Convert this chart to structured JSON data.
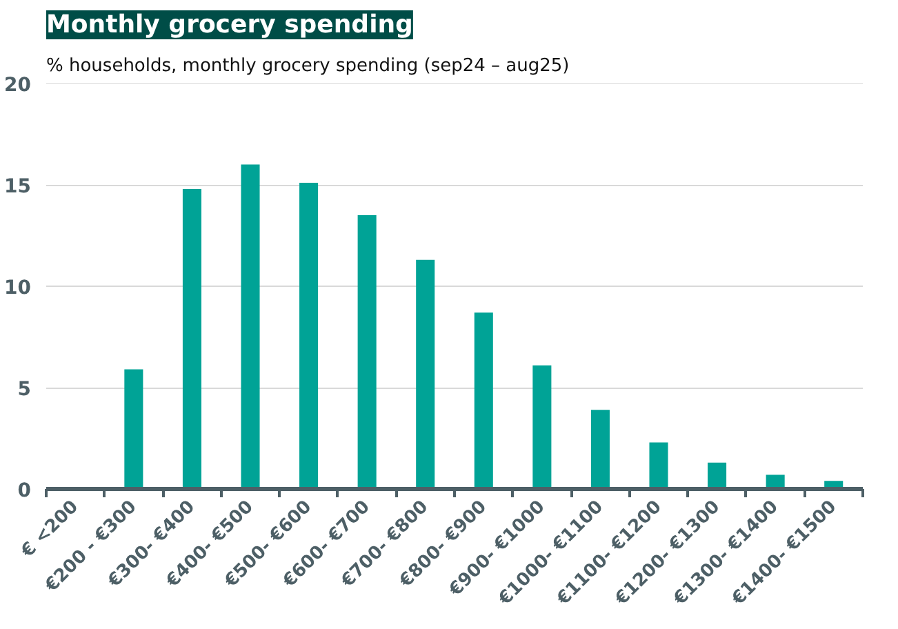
{
  "chart_data": {
    "type": "bar",
    "title": "Monthly grocery spending",
    "subtitle": "% households, monthly grocery spending (sep24 – aug25)",
    "categories": [
      "€ <200",
      "€200 - €300",
      "€300- €400",
      "€400- €500",
      "€500- €600",
      "€600- €700",
      "€700- €800",
      "€800- €900",
      "€900- €1000",
      "€1000- €1100",
      "€1100- €1200",
      "€1200- €1300",
      "€1300- €1400",
      "€1400- €1500"
    ],
    "values": [
      0,
      5.9,
      14.8,
      16.0,
      15.1,
      13.5,
      11.3,
      8.7,
      6.1,
      3.9,
      2.3,
      1.3,
      0.7,
      0.4
    ],
    "color": "#00a396",
    "ylim": [
      0,
      20
    ],
    "yticks": [
      0,
      5,
      10,
      15,
      20
    ],
    "grid": "y"
  }
}
